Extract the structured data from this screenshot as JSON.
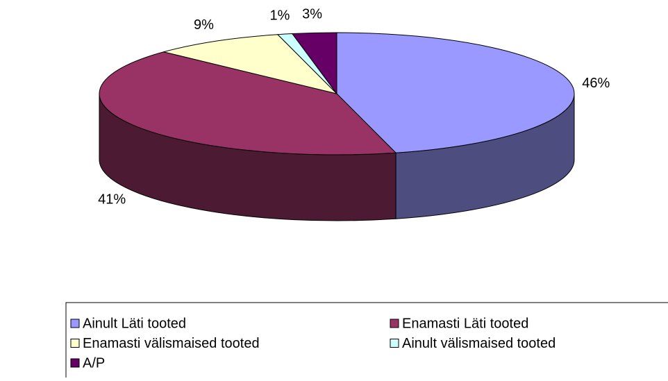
{
  "chart_data": {
    "type": "pie",
    "categories": [
      "Ainult Läti tooted",
      "Enamasti Läti tooted",
      "Enamasti välismaised tooted",
      "Ainult välismaised tooted",
      "A/P"
    ],
    "values": [
      46,
      41,
      9,
      1,
      3
    ],
    "value_labels": [
      "46%",
      "41%",
      "9%",
      "1%",
      "3%"
    ],
    "colors": [
      "#9999ff",
      "#993366",
      "#ffffcc",
      "#ccffff",
      "#660066"
    ],
    "legend": "bottom"
  }
}
